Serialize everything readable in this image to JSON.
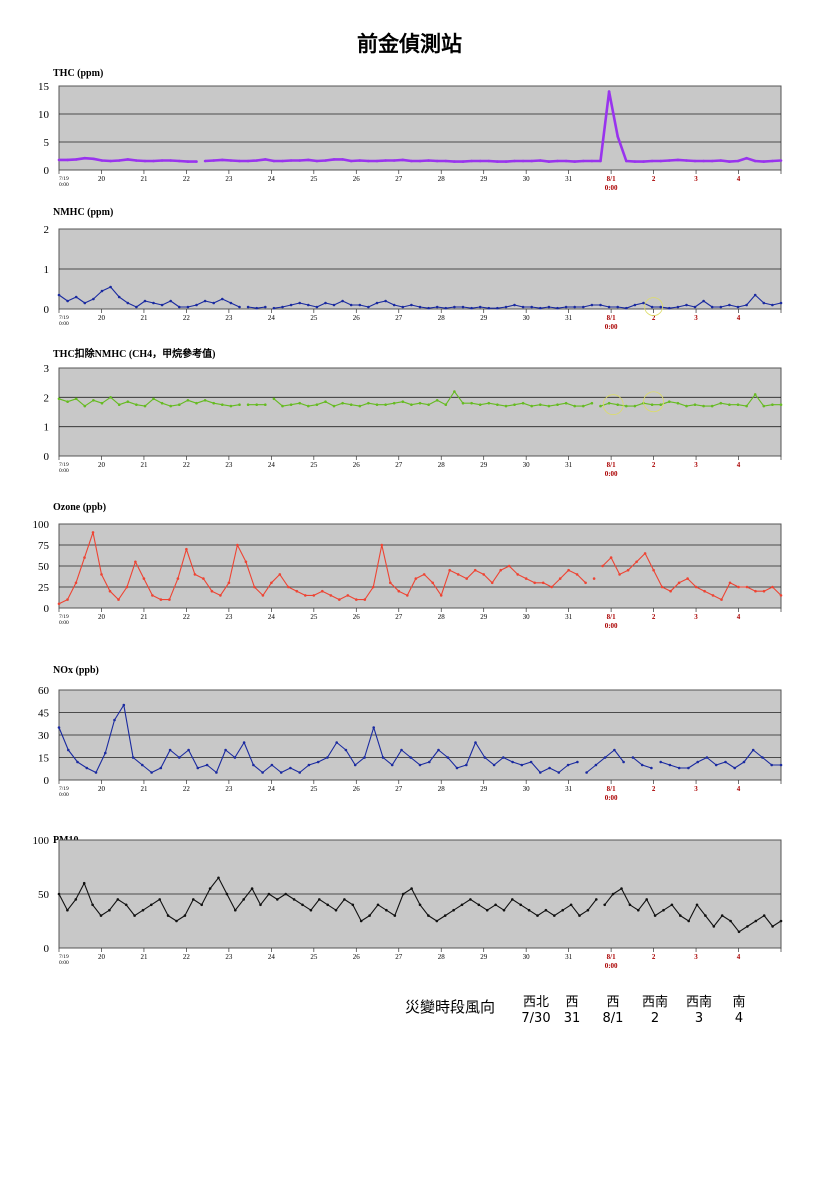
{
  "page_title": "前金偵測站",
  "colors": {
    "plot_bg": "#c8c8c8",
    "date_red": "#aa0000",
    "thc": "#9933ee",
    "nmhc": "#1a2aa0",
    "ch4": "#66bb22",
    "ozone": "#ee4433",
    "nox": "#1a2aa0",
    "pm10": "#111111",
    "circle": "#dddd66"
  },
  "x_axis": {
    "first_tick_label": [
      "7/19",
      "0:00"
    ],
    "day_labels": [
      "20",
      "21",
      "22",
      "23",
      "24",
      "25",
      "26",
      "27",
      "28",
      "29",
      "30",
      "31",
      "8/1",
      "2",
      "3",
      "4"
    ],
    "aug1_sublabel": "0:00"
  },
  "chart_data": [
    {
      "id": "thc",
      "type": "line",
      "title": "THC (ppm)",
      "ylim": [
        0,
        15
      ],
      "yticks": [
        0,
        5,
        10,
        15
      ],
      "series": [
        {
          "color": "#9933ee",
          "values": [
            1.8,
            1.8,
            1.9,
            2.1,
            2.0,
            1.7,
            1.6,
            1.7,
            1.9,
            1.7,
            1.6,
            1.6,
            1.7,
            1.7,
            1.6,
            1.5,
            1.5,
            1.6,
            1.7,
            1.8,
            1.7,
            1.6,
            1.6,
            1.7,
            1.9,
            1.6,
            1.6,
            1.7,
            1.7,
            1.8,
            1.6,
            1.7,
            1.9,
            1.9,
            1.6,
            1.7,
            1.6,
            1.6,
            1.7,
            1.7,
            1.8,
            1.6,
            1.6,
            1.7,
            1.6,
            1.6,
            1.5,
            1.5,
            1.6,
            1.6,
            1.6,
            1.5,
            1.5,
            1.6,
            1.6,
            1.6,
            1.7,
            1.5,
            1.6,
            1.6,
            1.5,
            1.6,
            1.6,
            1.6,
            14.0,
            6.0,
            1.6,
            1.5,
            1.5,
            1.6,
            1.6,
            1.7,
            1.8,
            1.7,
            1.6,
            1.6,
            1.6,
            1.7,
            1.5,
            1.6,
            2.1,
            1.6,
            1.5,
            1.6,
            1.7
          ],
          "gap_after": [
            16
          ]
        }
      ]
    },
    {
      "id": "nmhc",
      "type": "line",
      "title": "NMHC (ppm)",
      "ylim": [
        0,
        2
      ],
      "yticks": [
        0,
        1,
        2
      ],
      "series": [
        {
          "color": "#1a2aa0",
          "values": [
            0.35,
            0.2,
            0.3,
            0.15,
            0.25,
            0.45,
            0.55,
            0.3,
            0.15,
            0.05,
            0.2,
            0.15,
            0.1,
            0.2,
            0.05,
            0.05,
            0.1,
            0.2,
            0.15,
            0.25,
            0.15,
            0.05,
            0.05,
            0.02,
            0.05,
            0.02,
            0.05,
            0.1,
            0.15,
            0.1,
            0.05,
            0.15,
            0.1,
            0.2,
            0.1,
            0.1,
            0.05,
            0.15,
            0.2,
            0.1,
            0.05,
            0.1,
            0.05,
            0.02,
            0.05,
            0.02,
            0.05,
            0.05,
            0.02,
            0.05,
            0.02,
            0.02,
            0.05,
            0.1,
            0.05,
            0.05,
            0.02,
            0.05,
            0.02,
            0.05,
            0.05,
            0.05,
            0.1,
            0.1,
            0.05,
            0.05,
            0.02,
            0.1,
            0.15,
            0.05,
            0.05,
            0.02,
            0.05,
            0.1,
            0.05,
            0.2,
            0.05,
            0.05,
            0.1,
            0.05,
            0.1,
            0.35,
            0.15,
            0.1,
            0.15
          ],
          "gap_after": [
            21,
            24
          ]
        }
      ]
    },
    {
      "id": "ch4",
      "type": "line",
      "title": "THC扣除NMHC (CH4，甲烷參考值)",
      "ylim": [
        0,
        3
      ],
      "yticks": [
        0,
        1,
        2,
        3
      ],
      "series": [
        {
          "color": "#66bb22",
          "values": [
            1.95,
            1.85,
            1.95,
            1.7,
            1.9,
            1.8,
            2.0,
            1.75,
            1.85,
            1.75,
            1.7,
            1.95,
            1.8,
            1.7,
            1.75,
            1.9,
            1.8,
            1.9,
            1.8,
            1.75,
            1.7,
            1.75,
            1.75,
            1.75,
            1.75,
            1.95,
            1.7,
            1.75,
            1.8,
            1.7,
            1.75,
            1.85,
            1.7,
            1.8,
            1.75,
            1.7,
            1.8,
            1.75,
            1.75,
            1.8,
            1.85,
            1.75,
            1.8,
            1.75,
            1.9,
            1.75,
            2.2,
            1.8,
            1.8,
            1.75,
            1.8,
            1.75,
            1.7,
            1.75,
            1.8,
            1.7,
            1.75,
            1.7,
            1.75,
            1.8,
            1.7,
            1.7,
            1.8,
            1.7,
            1.8,
            1.75,
            1.7,
            1.7,
            1.8,
            1.75,
            1.75,
            1.85,
            1.8,
            1.7,
            1.75,
            1.7,
            1.7,
            1.8,
            1.75,
            1.75,
            1.7,
            2.1,
            1.7,
            1.75,
            1.75
          ],
          "gap_after": [
            21,
            24,
            62
          ]
        }
      ]
    },
    {
      "id": "ozone",
      "type": "line",
      "title": "Ozone (ppb)",
      "ylim": [
        0,
        100
      ],
      "yticks": [
        0,
        25,
        50,
        75,
        100
      ],
      "series": [
        {
          "color": "#ee4433",
          "values": [
            5,
            10,
            30,
            60,
            90,
            40,
            20,
            10,
            25,
            55,
            35,
            15,
            10,
            10,
            35,
            70,
            40,
            35,
            20,
            15,
            30,
            75,
            55,
            25,
            15,
            30,
            40,
            25,
            20,
            15,
            15,
            20,
            15,
            10,
            15,
            10,
            10,
            25,
            75,
            30,
            20,
            15,
            35,
            40,
            30,
            15,
            45,
            40,
            35,
            45,
            40,
            30,
            45,
            50,
            40,
            35,
            30,
            30,
            25,
            35,
            45,
            40,
            30,
            35,
            50,
            60,
            40,
            45,
            55,
            65,
            45,
            25,
            20,
            30,
            35,
            25,
            20,
            15,
            10,
            30,
            25,
            25,
            20,
            20,
            25,
            15
          ],
          "gap_after": [
            62,
            63
          ]
        }
      ]
    },
    {
      "id": "nox",
      "type": "line",
      "title": "NOx (ppb)",
      "ylim": [
        0,
        60
      ],
      "yticks": [
        0,
        15,
        30,
        45,
        60
      ],
      "series": [
        {
          "color": "#1a2aa0",
          "values": [
            35,
            20,
            12,
            8,
            5,
            18,
            40,
            50,
            15,
            10,
            5,
            8,
            20,
            15,
            20,
            8,
            10,
            5,
            20,
            15,
            25,
            10,
            5,
            10,
            5,
            8,
            5,
            10,
            12,
            15,
            25,
            20,
            10,
            15,
            35,
            15,
            10,
            20,
            15,
            10,
            12,
            20,
            15,
            8,
            10,
            25,
            15,
            10,
            15,
            12,
            10,
            12,
            5,
            8,
            5,
            10,
            12,
            5,
            10,
            15,
            20,
            12,
            15,
            10,
            8,
            12,
            10,
            8,
            8,
            12,
            15,
            10,
            12,
            8,
            12,
            20,
            15,
            10,
            10
          ],
          "gap_after": [
            56,
            61,
            64
          ]
        }
      ]
    },
    {
      "id": "pm10",
      "type": "line",
      "title": "PM10",
      "ylim": [
        0,
        100
      ],
      "yticks": [
        0,
        50,
        100
      ],
      "series": [
        {
          "color": "#111111",
          "values": [
            50,
            35,
            45,
            60,
            40,
            30,
            35,
            45,
            40,
            30,
            35,
            40,
            45,
            30,
            25,
            30,
            45,
            40,
            55,
            65,
            50,
            35,
            45,
            55,
            40,
            50,
            45,
            50,
            45,
            40,
            35,
            45,
            40,
            35,
            45,
            40,
            25,
            30,
            40,
            35,
            30,
            50,
            55,
            40,
            30,
            25,
            30,
            35,
            40,
            45,
            40,
            35,
            40,
            35,
            45,
            40,
            35,
            30,
            35,
            30,
            35,
            40,
            30,
            35,
            45,
            40,
            50,
            55,
            40,
            35,
            45,
            30,
            35,
            40,
            30,
            25,
            40,
            30,
            20,
            30,
            25,
            15,
            20,
            25,
            30,
            20,
            25
          ],
          "gap_after": [
            64
          ]
        }
      ]
    }
  ],
  "wind": {
    "title": "災變時段風向",
    "directions": [
      "西北",
      "西",
      "西",
      "西南",
      "西南",
      "南"
    ],
    "dates": [
      "7/30",
      "31",
      "8/1",
      "2",
      "3",
      "4"
    ]
  }
}
